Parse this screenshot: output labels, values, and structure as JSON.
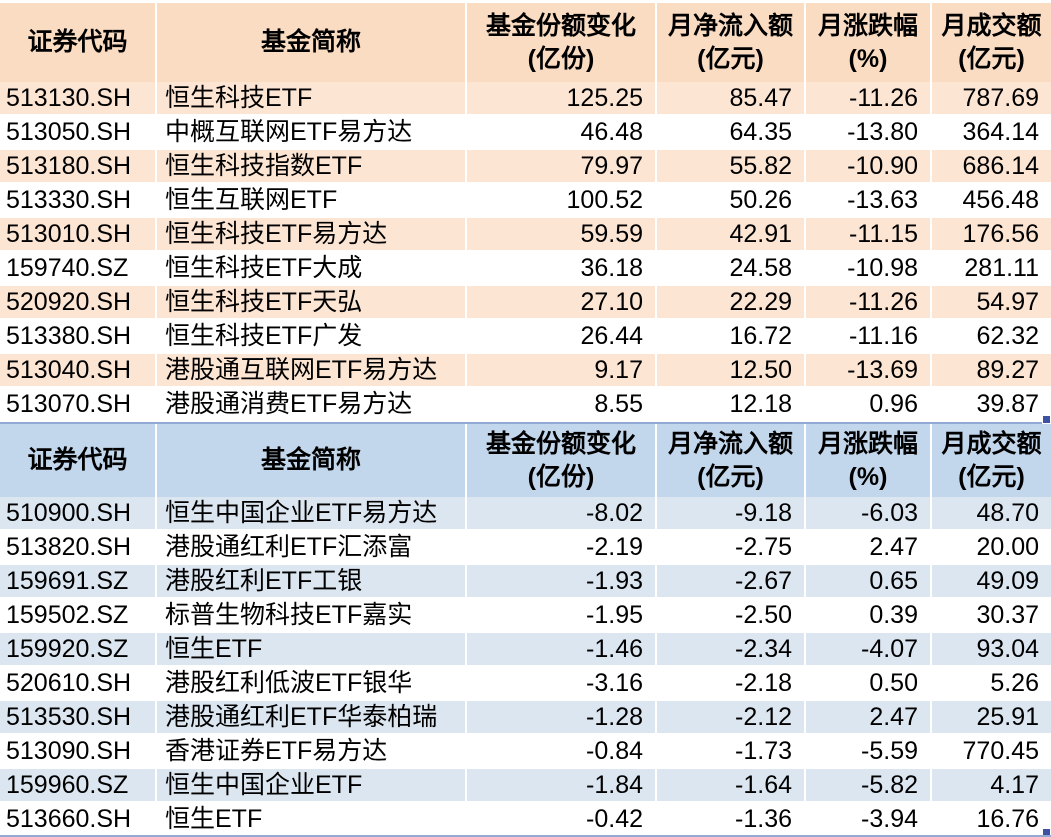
{
  "colors": {
    "inflow_header_bg": "#fadcc3",
    "inflow_alt_row_bg": "#fce5d3",
    "outflow_header_bg": "#c3d7ec",
    "outflow_alt_row_bg": "#dce6f1",
    "white_row_bg": "#ffffff",
    "text": "#000000",
    "selection_border": "#92a9d4",
    "selection_handle": "#3f51a3"
  },
  "columns": [
    {
      "title": "证券代码",
      "unit": ""
    },
    {
      "title": "基金简称",
      "unit": ""
    },
    {
      "title": "基金份额变化",
      "unit": "(亿份)"
    },
    {
      "title": "月净流入额",
      "unit": "(亿元)"
    },
    {
      "title": "月涨跌幅",
      "unit": "(%)"
    },
    {
      "title": "月成交额",
      "unit": "(亿元)"
    }
  ],
  "tables": [
    {
      "name": "inflow-funds-table",
      "theme": "orange",
      "rows": [
        {
          "code": "513130.SH",
          "name": "恒生科技ETF",
          "share_change": "125.25",
          "net_inflow": "85.47",
          "monthly_change_pct": "-11.26",
          "monthly_turnover": "787.69"
        },
        {
          "code": "513050.SH",
          "name": "中概互联网ETF易方达",
          "share_change": "46.48",
          "net_inflow": "64.35",
          "monthly_change_pct": "-13.80",
          "monthly_turnover": "364.14"
        },
        {
          "code": "513180.SH",
          "name": "恒生科技指数ETF",
          "share_change": "79.97",
          "net_inflow": "55.82",
          "monthly_change_pct": "-10.90",
          "monthly_turnover": "686.14"
        },
        {
          "code": "513330.SH",
          "name": "恒生互联网ETF",
          "share_change": "100.52",
          "net_inflow": "50.26",
          "monthly_change_pct": "-13.63",
          "monthly_turnover": "456.48"
        },
        {
          "code": "513010.SH",
          "name": "恒生科技ETF易方达",
          "share_change": "59.59",
          "net_inflow": "42.91",
          "monthly_change_pct": "-11.15",
          "monthly_turnover": "176.56"
        },
        {
          "code": "159740.SZ",
          "name": "恒生科技ETF大成",
          "share_change": "36.18",
          "net_inflow": "24.58",
          "monthly_change_pct": "-10.98",
          "monthly_turnover": "281.11"
        },
        {
          "code": "520920.SH",
          "name": "恒生科技ETF天弘",
          "share_change": "27.10",
          "net_inflow": "22.29",
          "monthly_change_pct": "-11.26",
          "monthly_turnover": "54.97"
        },
        {
          "code": "513380.SH",
          "name": "恒生科技ETF广发",
          "share_change": "26.44",
          "net_inflow": "16.72",
          "monthly_change_pct": "-11.16",
          "monthly_turnover": "62.32"
        },
        {
          "code": "513040.SH",
          "name": "港股通互联网ETF易方达",
          "share_change": "9.17",
          "net_inflow": "12.50",
          "monthly_change_pct": "-13.69",
          "monthly_turnover": "89.27"
        },
        {
          "code": "513070.SH",
          "name": "港股通消费ETF易方达",
          "share_change": "8.55",
          "net_inflow": "12.18",
          "monthly_change_pct": "0.96",
          "monthly_turnover": "39.87"
        }
      ]
    },
    {
      "name": "outflow-funds-table",
      "theme": "blue",
      "rows": [
        {
          "code": "510900.SH",
          "name": "恒生中国企业ETF易方达",
          "share_change": "-8.02",
          "net_inflow": "-9.18",
          "monthly_change_pct": "-6.03",
          "monthly_turnover": "48.70"
        },
        {
          "code": "513820.SH",
          "name": "港股通红利ETF汇添富",
          "share_change": "-2.19",
          "net_inflow": "-2.75",
          "monthly_change_pct": "2.47",
          "monthly_turnover": "20.00"
        },
        {
          "code": "159691.SZ",
          "name": "港股红利ETF工银",
          "share_change": "-1.93",
          "net_inflow": "-2.67",
          "monthly_change_pct": "0.65",
          "monthly_turnover": "49.09"
        },
        {
          "code": "159502.SZ",
          "name": "标普生物科技ETF嘉实",
          "share_change": "-1.95",
          "net_inflow": "-2.50",
          "monthly_change_pct": "0.39",
          "monthly_turnover": "30.37"
        },
        {
          "code": "159920.SZ",
          "name": "恒生ETF",
          "share_change": "-1.46",
          "net_inflow": "-2.34",
          "monthly_change_pct": "-4.07",
          "monthly_turnover": "93.04"
        },
        {
          "code": "520610.SH",
          "name": "港股红利低波ETF银华",
          "share_change": "-3.16",
          "net_inflow": "-2.18",
          "monthly_change_pct": "0.50",
          "monthly_turnover": "5.26"
        },
        {
          "code": "513530.SH",
          "name": "港股通红利ETF华泰柏瑞",
          "share_change": "-1.28",
          "net_inflow": "-2.12",
          "monthly_change_pct": "2.47",
          "monthly_turnover": "25.91"
        },
        {
          "code": "513090.SH",
          "name": "香港证券ETF易方达",
          "share_change": "-0.84",
          "net_inflow": "-1.73",
          "monthly_change_pct": "-5.59",
          "monthly_turnover": "770.45"
        },
        {
          "code": "159960.SZ",
          "name": "恒生中国企业ETF",
          "share_change": "-1.84",
          "net_inflow": "-1.64",
          "monthly_change_pct": "-5.82",
          "monthly_turnover": "4.17"
        },
        {
          "code": "513660.SH",
          "name": "恒生ETF",
          "share_change": "-0.42",
          "net_inflow": "-1.36",
          "monthly_change_pct": "-3.94",
          "monthly_turnover": "16.76"
        }
      ]
    }
  ]
}
